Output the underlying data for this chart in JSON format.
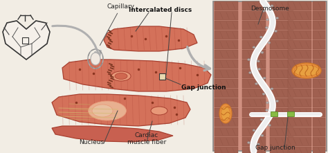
{
  "bg_color": "#f2ede4",
  "labels": {
    "capillary": "Capillary",
    "intercalated_discs": "Intercalated discs",
    "gap_junction_mid": "Gap junction",
    "nucleus": "Nucleus",
    "cardiac_muscle_fiber": "Cardiac\nmuscle fiber",
    "desmosome": "Desmosome",
    "gap_junction_right": "Gap junction"
  },
  "muscle_color": "#d4715a",
  "muscle_dark": "#a84030",
  "muscle_mid": "#c86050",
  "muscle_light": "#e89878",
  "muscle_highlight": "#e8b090",
  "heart_outline": "#222222",
  "zoom_bg": "#cc8870",
  "zoom_border": "#888888",
  "sarcomere_band_dark": "#a06050",
  "sarcomere_band_mid": "#c07860",
  "sarcomere_line": "#8a5040",
  "mito_color": "#e89040",
  "mito_inner": "#d07828",
  "mito_line": "#c06820",
  "white_color": "#ffffff",
  "disc_line_color": "#cccccc",
  "gap_junction_green": "#88bb44",
  "arrow_gray": "#b0b0b0",
  "line_dark": "#444444",
  "label_color": "#222222",
  "capillary_color": "#ddcccc",
  "capillary_edge": "#aa8888"
}
